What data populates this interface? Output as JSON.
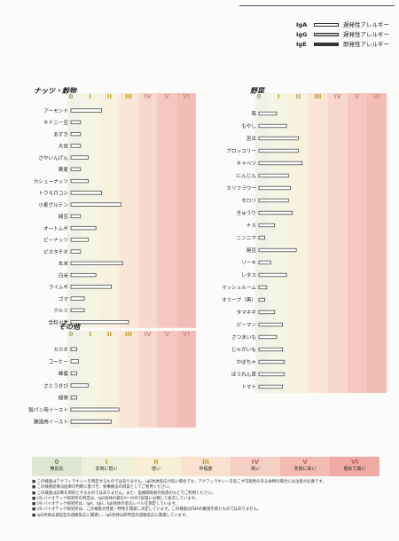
{
  "legend": [
    {
      "label": "IgA",
      "text": "遅発性アレルギー",
      "fill": "#ffffff"
    },
    {
      "label": "IgG",
      "text": "遅発性アレルギー",
      "fill": "#bbbbbb"
    },
    {
      "label": "IgE",
      "text": "即発性アレルギー",
      "fill": "#333333"
    }
  ],
  "chart_data": [
    {
      "type": "bar",
      "title": "ナッツ・穀物",
      "class_labels": [
        "0",
        "I",
        "II",
        "III",
        "IV",
        "V",
        "VI"
      ],
      "xlim": [
        0,
        6
      ],
      "categories": [
        "アーモンド",
        "キドニー豆",
        "あずき",
        "大豆",
        "さやいんげん",
        "蕎麦",
        "カシューナッツ",
        "トウモロコシ",
        "小麦グルテン",
        "緑豆",
        "オートムギ",
        "ピーナッツ",
        "ピスタチオ",
        "玄米",
        "白米",
        "ライムギ",
        "ゴマ",
        "クルミ",
        "全粒小麦"
      ],
      "series": [
        {
          "values": [
            1.6,
            0.5,
            0.5,
            0.5,
            0.9,
            0.5,
            0.9,
            1.6,
            2.6,
            0.5,
            1.3,
            0.9,
            0.5,
            2.7,
            1.3,
            2.1,
            0.7,
            0.7,
            3.0
          ]
        }
      ]
    },
    {
      "type": "bar",
      "title": "野菜",
      "class_labels": [
        "0",
        "I",
        "II",
        "III",
        "IV",
        "V",
        "VI"
      ],
      "xlim": [
        0,
        6
      ],
      "categories": [
        "苺",
        "もやし",
        "苦瓜",
        "ブロッコリー",
        "キャベツ",
        "にんじん",
        "カリフラワー",
        "セロリ",
        "きゅうり",
        "ナス",
        "ニンニク",
        "豌豆",
        "リーキ",
        "レタス",
        "マッシュルーム",
        "オリーブ（黒）",
        "タマネギ",
        "ピーマン",
        "さつまいも",
        "じゃがいも",
        "かぼちゃ",
        "ほうれん草",
        "トマト"
      ],
      "series": [
        {
          "values": [
            0.9,
            1.4,
            2.0,
            2.0,
            2.2,
            1.5,
            1.6,
            1.5,
            1.7,
            0.8,
            0.3,
            1.9,
            0.6,
            1.4,
            0.4,
            0.3,
            0.8,
            1.2,
            0.9,
            1.2,
            1.3,
            1.3,
            1.2
          ]
        }
      ]
    },
    {
      "type": "bar",
      "title": "その他",
      "class_labels": [
        "0",
        "I",
        "II",
        "III",
        "IV",
        "V",
        "VI"
      ],
      "xlim": [
        0,
        6
      ],
      "categories": [
        "カカオ",
        "コーヒー",
        "蜂蜜",
        "さとうきび",
        "緑茶",
        "製パン用イースト",
        "醸造用イースト"
      ],
      "series": [
        {
          "values": [
            0.3,
            0.4,
            0.3,
            0.9,
            0.3,
            2.5,
            2.1
          ]
        }
      ]
    }
  ],
  "scale_bar": [
    {
      "num": "0",
      "label": "無反応"
    },
    {
      "num": "I",
      "label": "非常に低い"
    },
    {
      "num": "II",
      "label": "低い"
    },
    {
      "num": "III",
      "label": "中程度"
    },
    {
      "num": "IV",
      "label": "高い"
    },
    {
      "num": "V",
      "label": "非常に高い"
    },
    {
      "num": "VI",
      "label": "極めて高い"
    }
  ],
  "notes": [
    "■ この検査はアナフィラキシーを特定するものではありません。IgE抗体反応が低い場合でも、アナフィラキシーを起こす可能性のある食物の場合には注意が必要です。",
    "■ この検査結果は医師の判断に基づき、食事療法の目安としてご利用ください。",
    "■ この検査は診断を目的とするものではありません。また、医療関係者の指導のもとでご利用ください。",
    "■ US-バイオテック研究所の判定は、IgG抗体の値を0〜VIの7段階に分類して表示しています。",
    "■ US-バイオテック研究所は、IgA、IgG、IgE抗体の反応レベルを測定しています。",
    "■ US-バイオテック研究所は、この検査の性能・特性を開発し決定しています。この検査はFDAの審査を経たものではありません。",
    "■ IgG抗体は遅延型の過敏反応に関連し、IgE抗体は即時型の過敏反応に関連しています。"
  ]
}
